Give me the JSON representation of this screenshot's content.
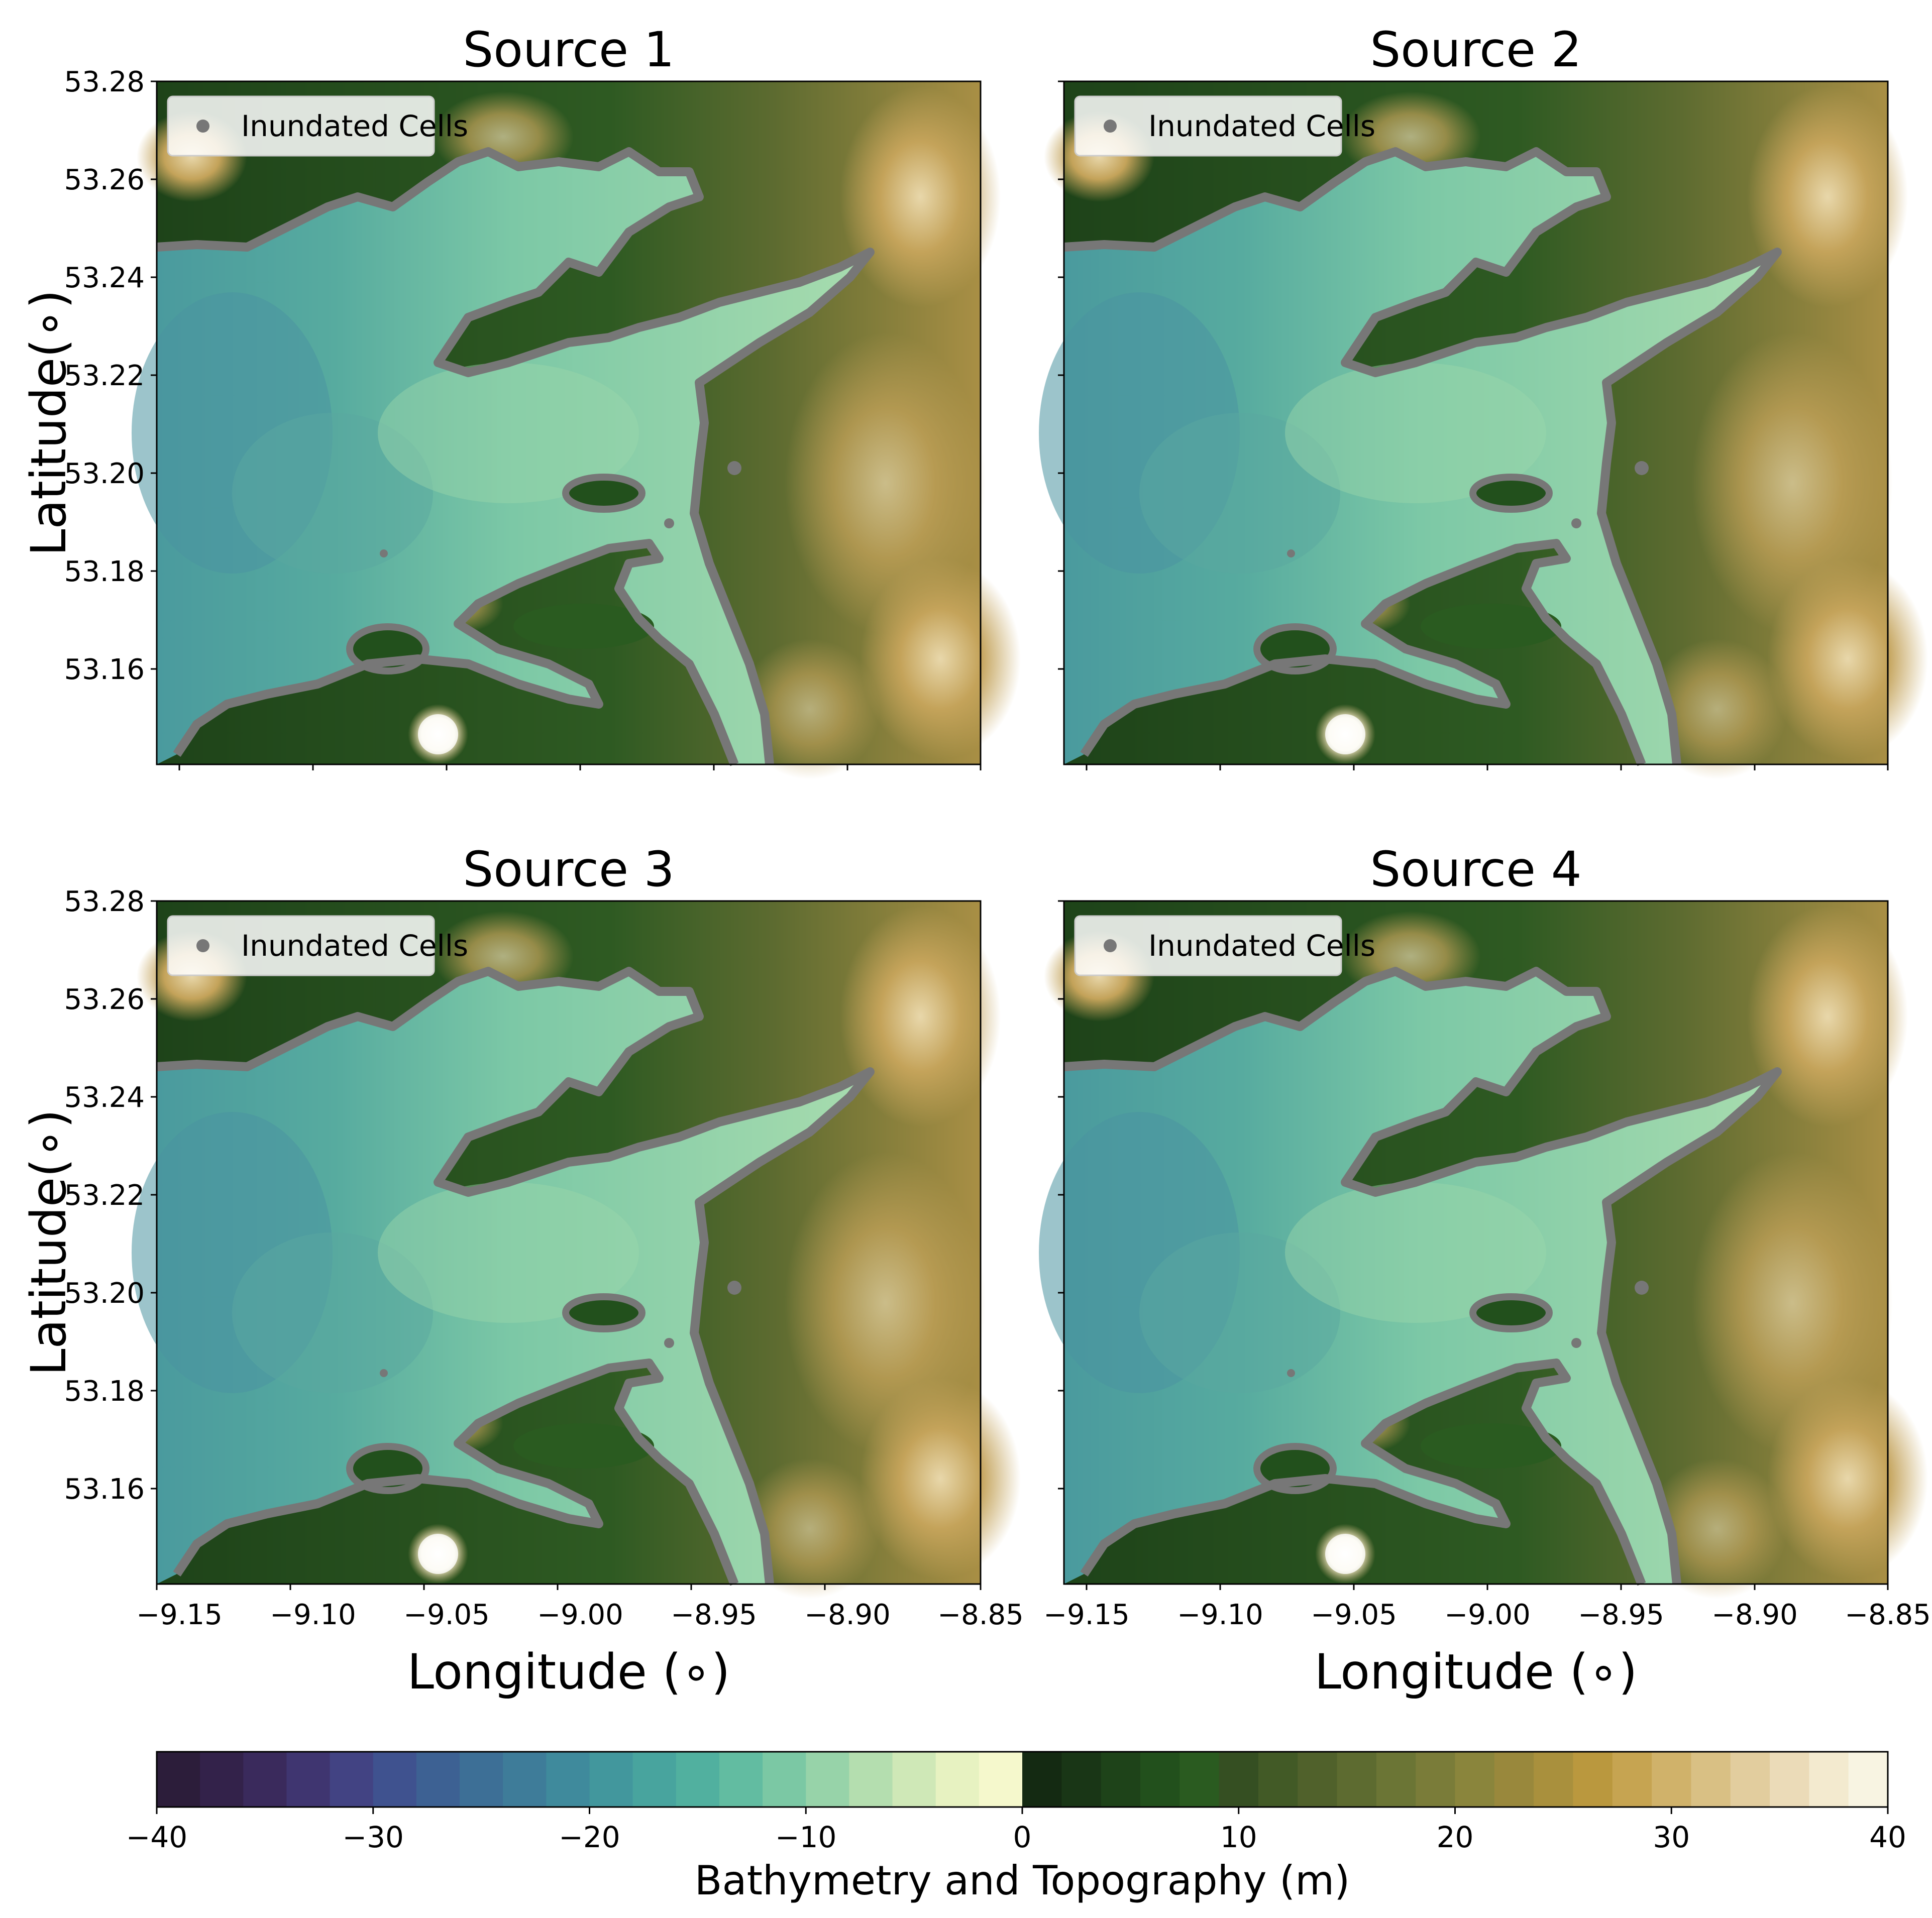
{
  "panels": [
    {
      "title": "Source 1"
    },
    {
      "title": "Source 2"
    },
    {
      "title": "Source 3"
    },
    {
      "title": "Source 4"
    }
  ],
  "legend_label": "Inundated Cells",
  "xlabel": "Longitude (∘)",
  "ylabel": "Latitude(∘)",
  "xticks": [
    "−9.15",
    "−9.10",
    "−9.05",
    "−9.00",
    "−8.95",
    "−8.90",
    "−8.85"
  ],
  "yticks": [
    "53.28",
    "53.26",
    "53.24",
    "53.22",
    "53.20",
    "53.18",
    "53.16"
  ],
  "colorbar": {
    "label": "Bathymetry and Topography (m)",
    "ticks": [
      "−40",
      "−30",
      "−20",
      "−10",
      "0",
      "10",
      "20",
      "30",
      "40"
    ],
    "range": [
      -40,
      40
    ],
    "colors_negative": [
      "#2c1d3a",
      "#33224a",
      "#3a2a5c",
      "#3f3570",
      "#424383",
      "#3f528f",
      "#3d6193",
      "#3d6f96",
      "#3e7c99",
      "#3f8a9c",
      "#42979d",
      "#48a49e",
      "#51b09f",
      "#62bca1",
      "#7bc8a4",
      "#97d3a9",
      "#b4deaf",
      "#cfe8b7",
      "#e7f2c1",
      "#f5f8cc"
    ],
    "colors_positive": [
      "#142a12",
      "#193616",
      "#1e4319",
      "#22501c",
      "#2a5b20",
      "#354f22",
      "#425a26",
      "#50612b",
      "#5d6b30",
      "#6b7535",
      "#7a7c39",
      "#8a853c",
      "#99883c",
      "#a9903d",
      "#ba983e",
      "#c6a451",
      "#d0b26a",
      "#d9c084",
      "#e2cd9e",
      "#ebdbb8",
      "#f3eacf",
      "#f8f4e2"
    ]
  },
  "chart_data": {
    "type": "heatmap",
    "x_range": [
      -9.16,
      -8.85
    ],
    "y_range": [
      53.14,
      53.28
    ],
    "note_colors": {
      "water": "#6fc0a4",
      "land": "#3d5a26",
      "inundated": "#7a7a7a"
    }
  }
}
